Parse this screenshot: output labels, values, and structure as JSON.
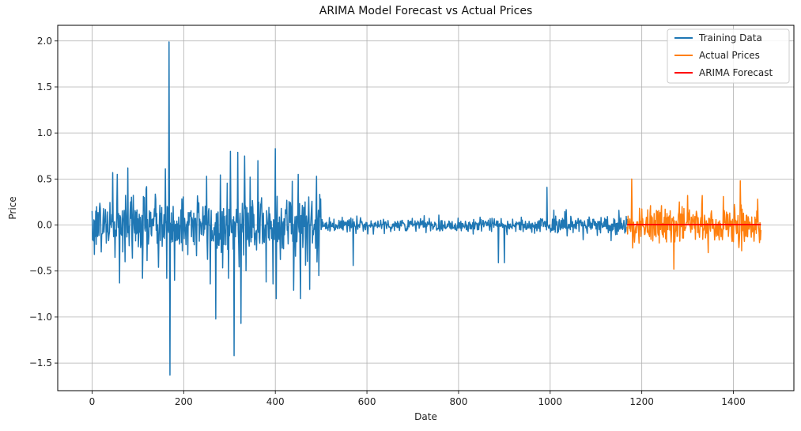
{
  "chart_data": {
    "type": "line",
    "title": "ARIMA Model Forecast vs Actual Prices",
    "xlabel": "Date",
    "ylabel": "Price",
    "xlim": [
      -75,
      1532
    ],
    "ylim": [
      -1.8,
      2.17
    ],
    "xticks": [
      0,
      200,
      400,
      600,
      800,
      1000,
      1200,
      1400
    ],
    "yticks": [
      -1.5,
      -1.0,
      -0.5,
      0.0,
      0.5,
      1.0,
      1.5,
      2.0
    ],
    "xtick_labels": [
      "0",
      "200",
      "400",
      "600",
      "800",
      "1000",
      "1200",
      "1400"
    ],
    "ytick_labels": [
      "−1.5",
      "−1.0",
      "−0.5",
      "0.0",
      "0.5",
      "1.0",
      "1.5",
      "2.0"
    ],
    "grid": true,
    "legend_position": "top-right",
    "series": [
      {
        "name": "Training Data",
        "color": "#1f77b4",
        "x_start": 0,
        "x_end": 1168,
        "noise_segments": [
          {
            "from": 0,
            "to": 160,
            "amplitude": 0.3
          },
          {
            "from": 160,
            "to": 260,
            "amplitude": 0.28
          },
          {
            "from": 260,
            "to": 500,
            "amplitude": 0.32
          },
          {
            "from": 500,
            "to": 1000,
            "amplitude": 0.07
          },
          {
            "from": 1000,
            "to": 1168,
            "amplitude": 0.1
          }
        ],
        "peaks": [
          {
            "x": 45,
            "y": 0.57
          },
          {
            "x": 55,
            "y": 0.55
          },
          {
            "x": 60,
            "y": -0.63
          },
          {
            "x": 78,
            "y": 0.62
          },
          {
            "x": 110,
            "y": -0.58
          },
          {
            "x": 118,
            "y": 0.39
          },
          {
            "x": 145,
            "y": -0.46
          },
          {
            "x": 160,
            "y": 0.61
          },
          {
            "x": 163,
            "y": -0.58
          },
          {
            "x": 168,
            "y": 1.99
          },
          {
            "x": 170,
            "y": -1.63
          },
          {
            "x": 180,
            "y": -0.6
          },
          {
            "x": 250,
            "y": 0.53
          },
          {
            "x": 258,
            "y": -0.64
          },
          {
            "x": 270,
            "y": -1.02
          },
          {
            "x": 298,
            "y": -0.58
          },
          {
            "x": 302,
            "y": 0.8
          },
          {
            "x": 310,
            "y": -1.42
          },
          {
            "x": 318,
            "y": 0.79
          },
          {
            "x": 325,
            "y": -1.07
          },
          {
            "x": 333,
            "y": 0.75
          },
          {
            "x": 345,
            "y": 0.52
          },
          {
            "x": 362,
            "y": 0.7
          },
          {
            "x": 380,
            "y": -0.62
          },
          {
            "x": 395,
            "y": -0.64
          },
          {
            "x": 400,
            "y": 0.83
          },
          {
            "x": 402,
            "y": -0.8
          },
          {
            "x": 440,
            "y": -0.71
          },
          {
            "x": 450,
            "y": 0.55
          },
          {
            "x": 455,
            "y": -0.8
          },
          {
            "x": 475,
            "y": -0.7
          },
          {
            "x": 490,
            "y": 0.53
          },
          {
            "x": 495,
            "y": -0.55
          },
          {
            "x": 570,
            "y": -0.44
          },
          {
            "x": 887,
            "y": -0.41
          },
          {
            "x": 900,
            "y": -0.41
          },
          {
            "x": 993,
            "y": 0.41
          }
        ]
      },
      {
        "name": "Actual Prices",
        "color": "#ff7f0e",
        "x_start": 1168,
        "x_end": 1460,
        "noise_segments": [
          {
            "from": 1168,
            "to": 1460,
            "amplitude": 0.18
          }
        ],
        "peaks": [
          {
            "x": 1178,
            "y": 0.5
          },
          {
            "x": 1180,
            "y": -0.25
          },
          {
            "x": 1270,
            "y": -0.48
          },
          {
            "x": 1300,
            "y": 0.32
          },
          {
            "x": 1332,
            "y": 0.32
          },
          {
            "x": 1345,
            "y": -0.3
          },
          {
            "x": 1378,
            "y": 0.31
          },
          {
            "x": 1415,
            "y": 0.48
          },
          {
            "x": 1418,
            "y": -0.28
          }
        ]
      },
      {
        "name": "ARIMA Forecast",
        "color": "#ff0000",
        "x": [
          1168,
          1460
        ],
        "y": [
          0.005,
          0.005
        ]
      }
    ]
  }
}
